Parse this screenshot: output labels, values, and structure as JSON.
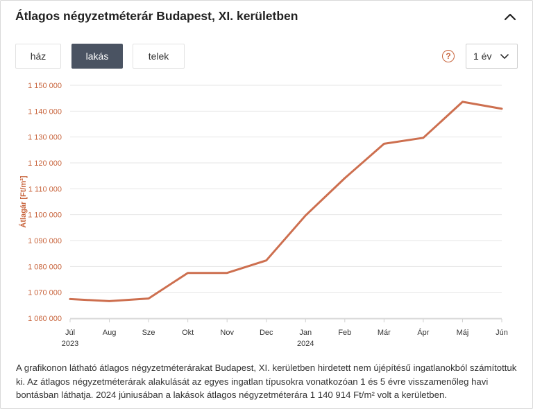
{
  "panel": {
    "title": "Átlagos négyzetméterár Budapest, XI. kerületben",
    "collapse_icon": "chevron-up-icon"
  },
  "tabs": [
    {
      "label": "ház",
      "active": false
    },
    {
      "label": "lakás",
      "active": true
    },
    {
      "label": "telek",
      "active": false
    }
  ],
  "help_icon": "question-circle-icon",
  "period": {
    "selected": "1 év",
    "icon": "chevron-down-icon"
  },
  "colors": {
    "line": "#cd6f4f",
    "axis_label": "#c8643c",
    "tab_active": "#4a5362"
  },
  "chart_data": {
    "type": "line",
    "ylabel": "Átlagár [Ft/m²]",
    "ylim": [
      1060000,
      1150000
    ],
    "yticks": [
      1060000,
      1070000,
      1080000,
      1090000,
      1100000,
      1110000,
      1120000,
      1130000,
      1140000,
      1150000
    ],
    "ytick_labels": [
      "1 060 000",
      "1 070 000",
      "1 080 000",
      "1 090 000",
      "1 100 000",
      "1 110 000",
      "1 120 000",
      "1 130 000",
      "1 140 000",
      "1 150 000"
    ],
    "categories": [
      "Júl",
      "Aug",
      "Sze",
      "Okt",
      "Nov",
      "Dec",
      "Jan",
      "Feb",
      "Már",
      "Ápr",
      "Máj",
      "Jún"
    ],
    "year_labels": [
      {
        "index": 0,
        "text": "2023"
      },
      {
        "index": 6,
        "text": "2024"
      }
    ],
    "grid": true,
    "series": [
      {
        "values": [
          1067400,
          1066600,
          1067600,
          1077500,
          1077500,
          1082300,
          1099700,
          1114100,
          1127400,
          1129700,
          1143600,
          1140914
        ]
      }
    ]
  },
  "description": "A grafikonon látható átlagos négyzetméterárakat Budapest, XI. kerületben hirdetett nem újépítésű ingatlanokból számítottuk ki. Az átlagos négyzetméterárak alakulását az egyes ingatlan típusokra vonatkozóan 1 és 5 évre visszamenőleg havi bontásban láthatja. 2024 júniusában a lakások átlagos négyzetméterára 1 140 914 Ft/m² volt a kerületben."
}
